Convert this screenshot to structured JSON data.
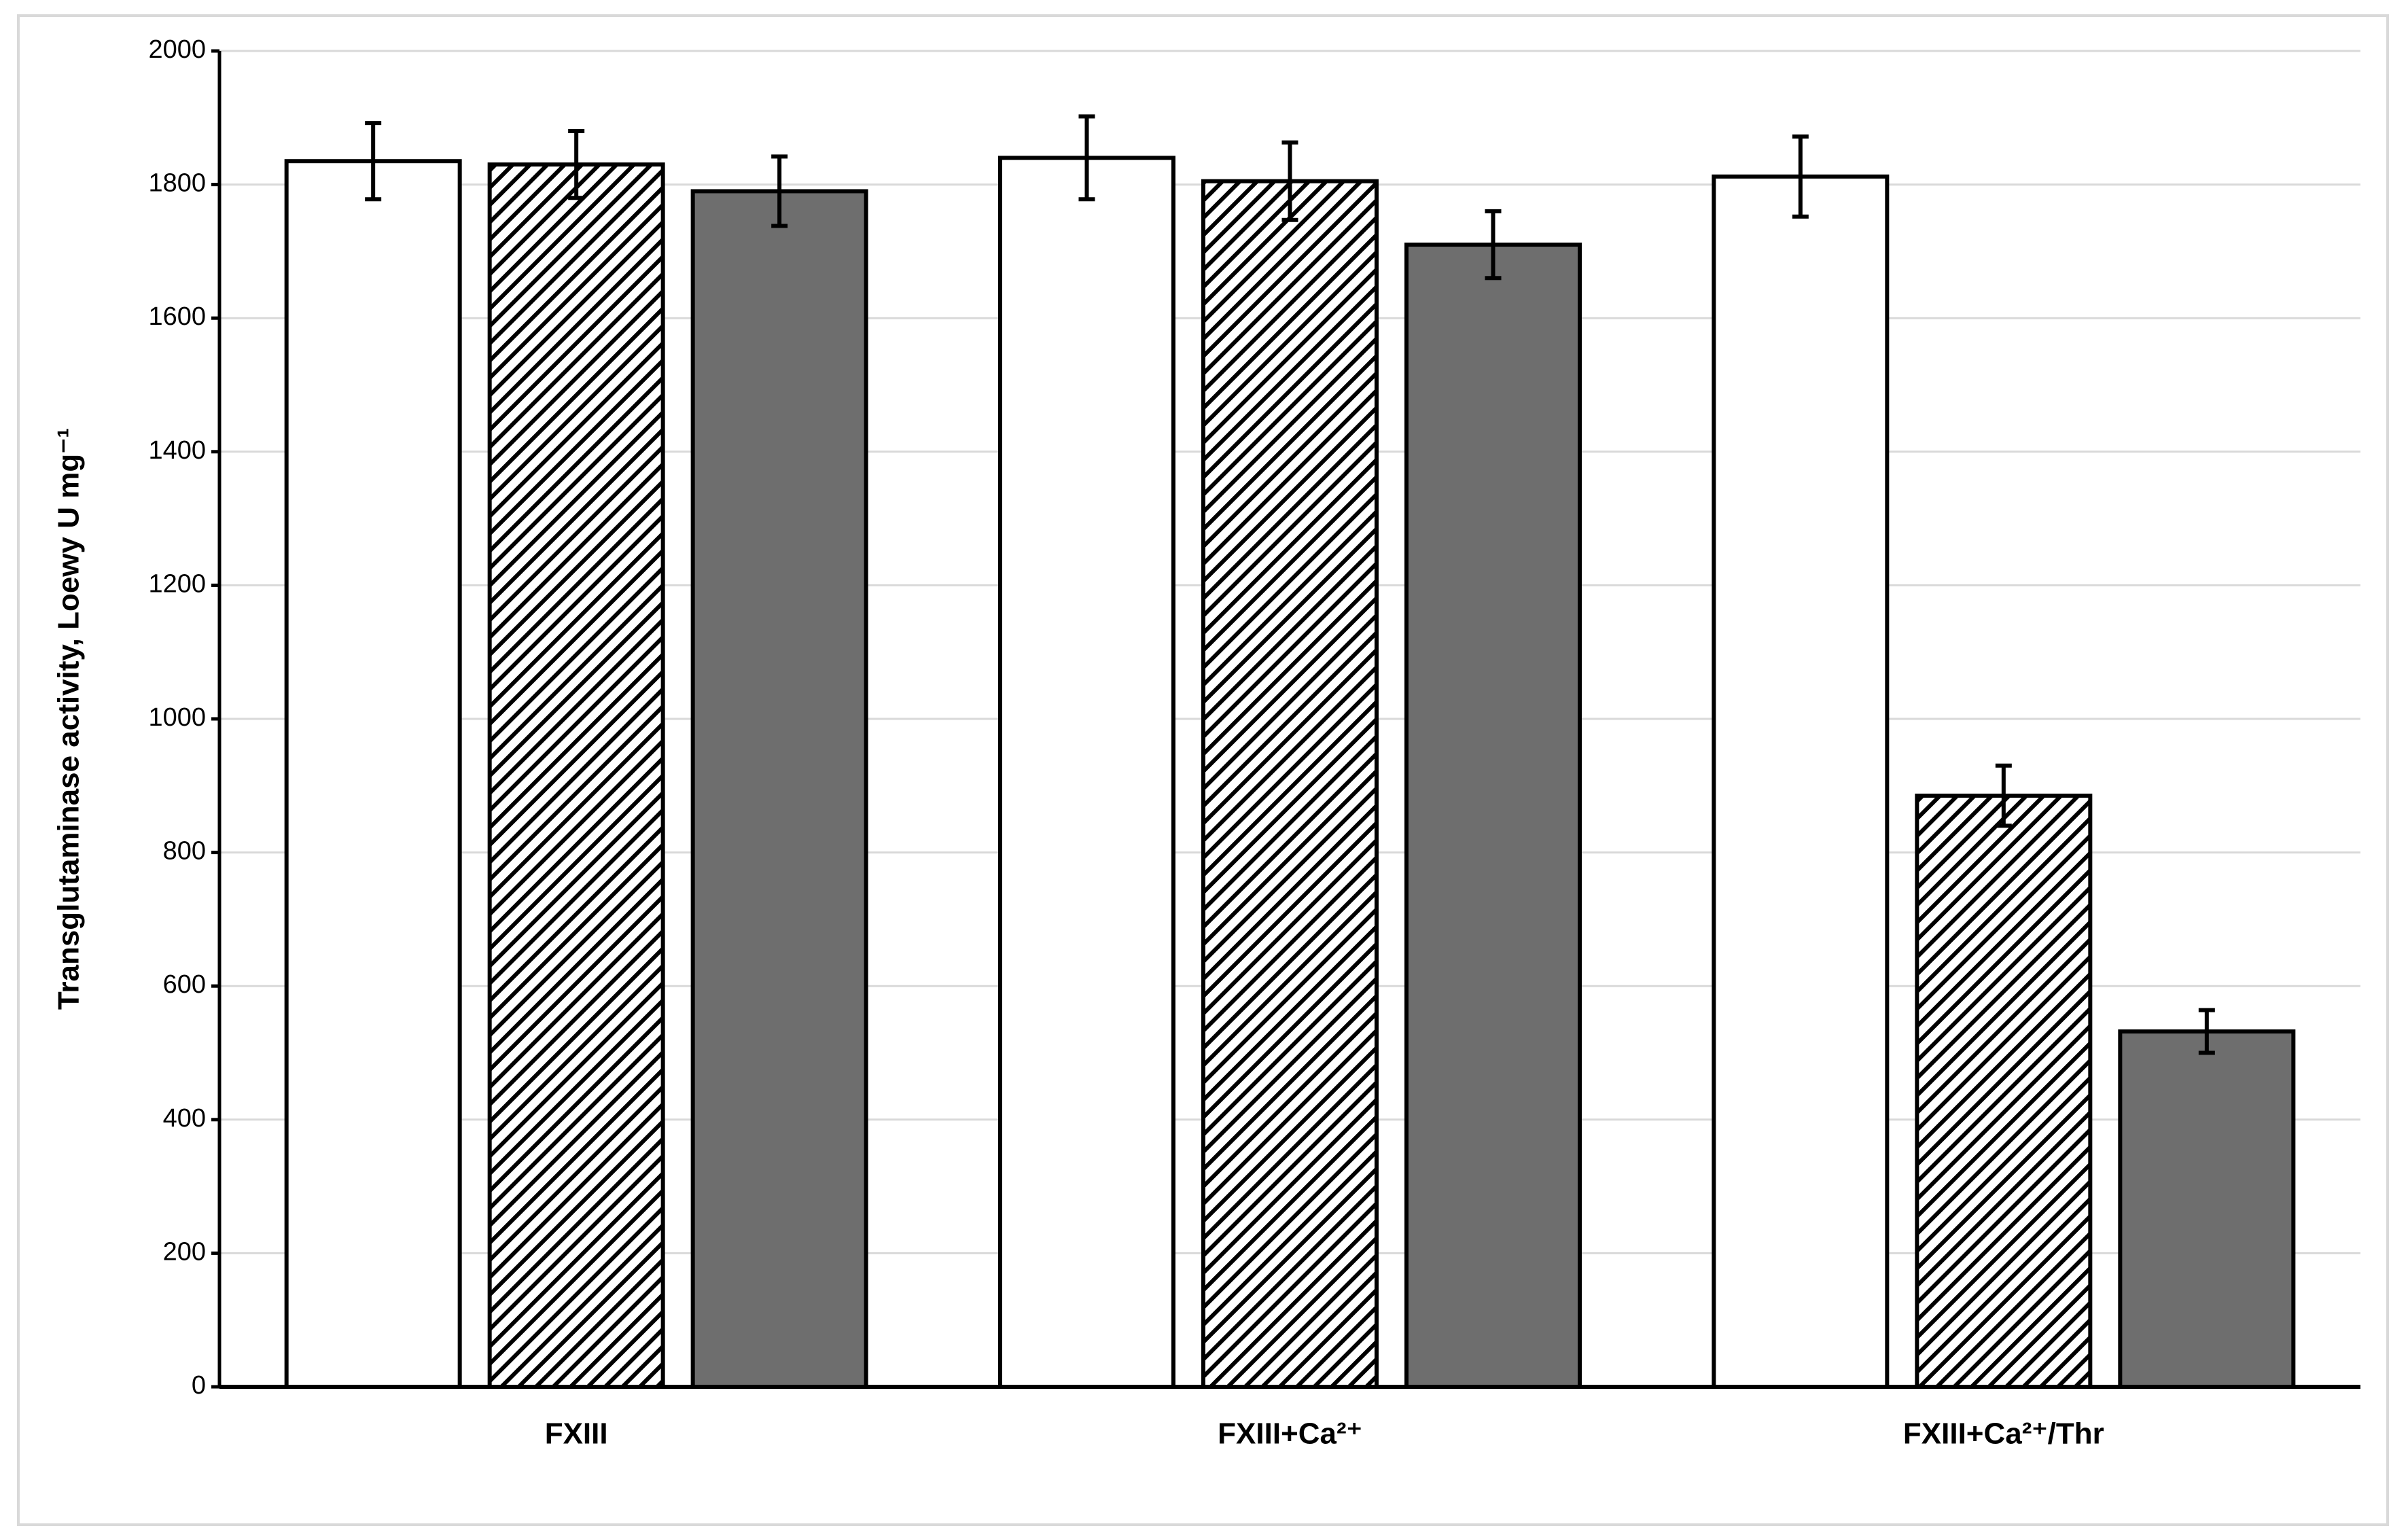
{
  "chart_data": {
    "type": "bar",
    "y_label": "Transglutaminase activity, Loewy U mg⁻¹",
    "categories": [
      "FXIII",
      "FXIII+Ca²⁺",
      "FXIII+Ca²⁺/Thr"
    ],
    "series": [
      {
        "color": "#ffffff",
        "values": [
          1835,
          1840,
          1812
        ],
        "errors": [
          57,
          62,
          60
        ]
      },
      {
        "color": "#ffffff",
        "pattern": "hatch",
        "values": [
          1830,
          1805,
          885
        ],
        "errors": [
          50,
          58,
          45
        ]
      },
      {
        "color": "#6e6e6e",
        "values": [
          1790,
          1710,
          532
        ],
        "errors": [
          52,
          50,
          32
        ]
      }
    ],
    "ylim": [
      0,
      2000
    ],
    "yticks": [
      0,
      200,
      400,
      600,
      800,
      1000,
      1200,
      1400,
      1600,
      1800,
      2000
    ],
    "grid": true
  }
}
